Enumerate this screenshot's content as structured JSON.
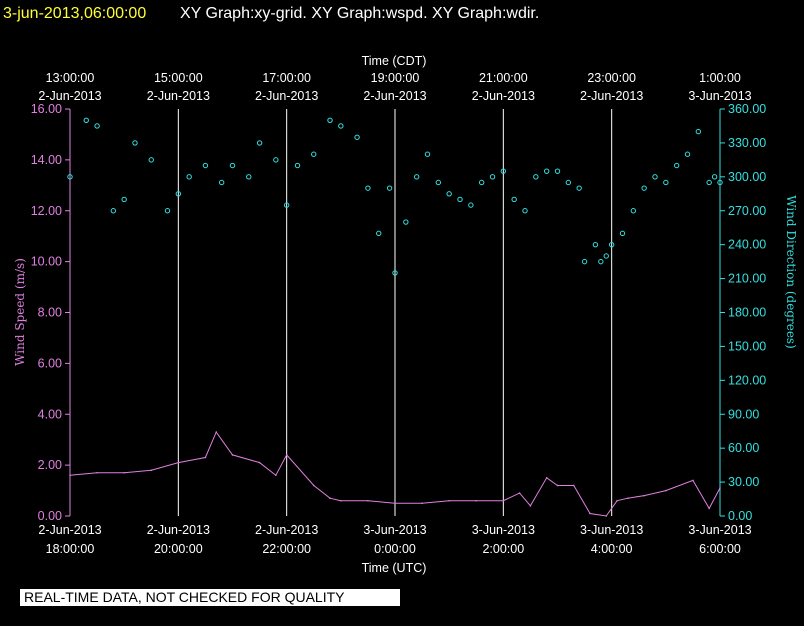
{
  "header": {
    "timestamp": "3-jun-2013,06:00:00",
    "titles": "XY Graph:xy-grid.  XY Graph:wspd.  XY Graph:wdir."
  },
  "disclaimer": "REAL-TIME DATA, NOT CHECKED FOR QUALITY",
  "colors": {
    "wspd": "#e080e0",
    "wdir": "#33e0e0",
    "grid": "#ffffff",
    "header_timestamp": "#ffff33"
  },
  "chart_data": {
    "type": "scatter",
    "top_axis_title": "Time (CDT)",
    "bottom_axis_title": "Time (UTC)",
    "y_left_label": "Wind Speed (m/s)",
    "y_right_label": "Wind Direction (degrees)",
    "x_range_utc_hours": [
      18,
      30
    ],
    "y_left_range": [
      0,
      16
    ],
    "y_right_range": [
      0,
      360
    ],
    "grid": "vertical",
    "top_ticks": [
      {
        "h": 18,
        "time": "13:00:00",
        "date": "2-Jun-2013"
      },
      {
        "h": 20,
        "time": "15:00:00",
        "date": "2-Jun-2013"
      },
      {
        "h": 22,
        "time": "17:00:00",
        "date": "2-Jun-2013"
      },
      {
        "h": 24,
        "time": "19:00:00",
        "date": "2-Jun-2013"
      },
      {
        "h": 26,
        "time": "21:00:00",
        "date": "2-Jun-2013"
      },
      {
        "h": 28,
        "time": "23:00:00",
        "date": "2-Jun-2013"
      },
      {
        "h": 30,
        "time": "1:00:00",
        "date": "3-Jun-2013"
      }
    ],
    "bottom_ticks": [
      {
        "h": 18,
        "date": "2-Jun-2013",
        "time": "18:00:00"
      },
      {
        "h": 20,
        "date": "2-Jun-2013",
        "time": "20:00:00"
      },
      {
        "h": 22,
        "date": "2-Jun-2013",
        "time": "22:00:00"
      },
      {
        "h": 24,
        "date": "3-Jun-2013",
        "time": "0:00:00"
      },
      {
        "h": 26,
        "date": "3-Jun-2013",
        "time": "2:00:00"
      },
      {
        "h": 28,
        "date": "3-Jun-2013",
        "time": "4:00:00"
      },
      {
        "h": 30,
        "date": "3-Jun-2013",
        "time": "6:00:00"
      }
    ],
    "y_left_ticks": [
      "0.00",
      "2.00",
      "4.00",
      "6.00",
      "8.00",
      "10.00",
      "12.00",
      "14.00",
      "16.00"
    ],
    "y_right_ticks": [
      "0.00",
      "30.00",
      "60.00",
      "90.00",
      "120.00",
      "150.00",
      "180.00",
      "210.00",
      "240.00",
      "270.00",
      "300.00",
      "330.00",
      "360.00"
    ],
    "series": [
      {
        "key": "wspd",
        "style": "line",
        "x": [
          18.0,
          18.5,
          19.0,
          19.5,
          20.0,
          20.5,
          20.7,
          21.0,
          21.5,
          21.8,
          22.0,
          22.5,
          22.8,
          23.0,
          23.5,
          24.0,
          24.5,
          25.0,
          25.5,
          26.0,
          26.3,
          26.5,
          26.8,
          27.0,
          27.3,
          27.6,
          27.9,
          28.1,
          28.3,
          28.6,
          29.0,
          29.5,
          29.8,
          30.0
        ],
        "y": [
          1.6,
          1.7,
          1.7,
          1.8,
          2.1,
          2.3,
          3.3,
          2.4,
          2.1,
          1.6,
          2.4,
          1.2,
          0.7,
          0.6,
          0.6,
          0.5,
          0.5,
          0.6,
          0.6,
          0.6,
          0.9,
          0.4,
          1.5,
          1.2,
          1.2,
          0.1,
          0.0,
          0.6,
          0.7,
          0.8,
          1.0,
          1.4,
          0.3,
          1.1
        ]
      },
      {
        "key": "wdir",
        "style": "points",
        "x": [
          18.0,
          18.3,
          18.5,
          18.8,
          19.0,
          19.2,
          19.5,
          19.8,
          20.0,
          20.2,
          20.5,
          20.8,
          21.0,
          21.3,
          21.5,
          21.8,
          22.0,
          22.2,
          22.5,
          22.8,
          23.0,
          23.3,
          23.5,
          23.7,
          23.9,
          24.0,
          24.2,
          24.4,
          24.6,
          24.8,
          25.0,
          25.2,
          25.4,
          25.6,
          25.8,
          26.0,
          26.2,
          26.4,
          26.6,
          26.8,
          27.0,
          27.2,
          27.4,
          27.5,
          27.7,
          27.8,
          27.9,
          28.0,
          28.2,
          28.4,
          28.6,
          28.8,
          29.0,
          29.2,
          29.4,
          29.6,
          29.8,
          29.9,
          30.0
        ],
        "y": [
          300,
          350,
          345,
          270,
          280,
          330,
          315,
          270,
          285,
          300,
          310,
          295,
          310,
          300,
          330,
          315,
          275,
          310,
          320,
          350,
          345,
          335,
          290,
          250,
          290,
          215,
          260,
          300,
          320,
          295,
          285,
          280,
          275,
          295,
          300,
          305,
          280,
          270,
          300,
          305,
          305,
          295,
          290,
          225,
          240,
          225,
          230,
          240,
          250,
          270,
          290,
          300,
          295,
          310,
          320,
          340,
          295,
          300,
          295
        ]
      }
    ]
  }
}
